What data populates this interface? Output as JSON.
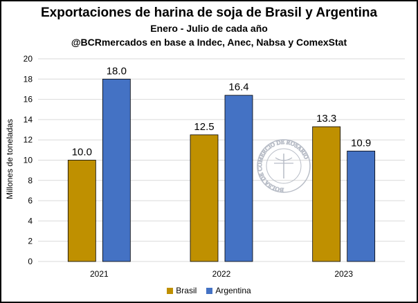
{
  "header": {
    "title": "Exportaciones de harina de soja de Brasil y Argentina",
    "subtitle1": "Enero - Julio de cada año",
    "subtitle2": "@BCRmercados en base a Indec, Anec, Nabsa y ComexStat"
  },
  "colors": {
    "Brasil": "#BF9000",
    "Argentina": "#4472C4",
    "grid": "#D9D9D9",
    "watermark": "#B7BCC6"
  },
  "watermark": {
    "text": "BOLSA DE COMERCIO DE ROSARIO"
  },
  "chart_data": {
    "type": "bar",
    "categories": [
      "2021",
      "2022",
      "2023"
    ],
    "series": [
      {
        "name": "Brasil",
        "values": [
          10.0,
          12.5,
          13.3
        ],
        "labels": [
          "10.0",
          "12.5",
          "13.3"
        ]
      },
      {
        "name": "Argentina",
        "values": [
          18.0,
          16.4,
          10.9
        ],
        "labels": [
          "18.0",
          "16.4",
          "10.9"
        ]
      }
    ],
    "title": "Exportaciones de harina de soja de Brasil y Argentina",
    "xlabel": "",
    "ylabel": "Millones de toneladas",
    "ylim": [
      0,
      20
    ],
    "yticks": [
      0,
      2,
      4,
      6,
      8,
      10,
      12,
      14,
      16,
      18,
      20
    ],
    "grid": true,
    "legend": "bottom-center"
  }
}
